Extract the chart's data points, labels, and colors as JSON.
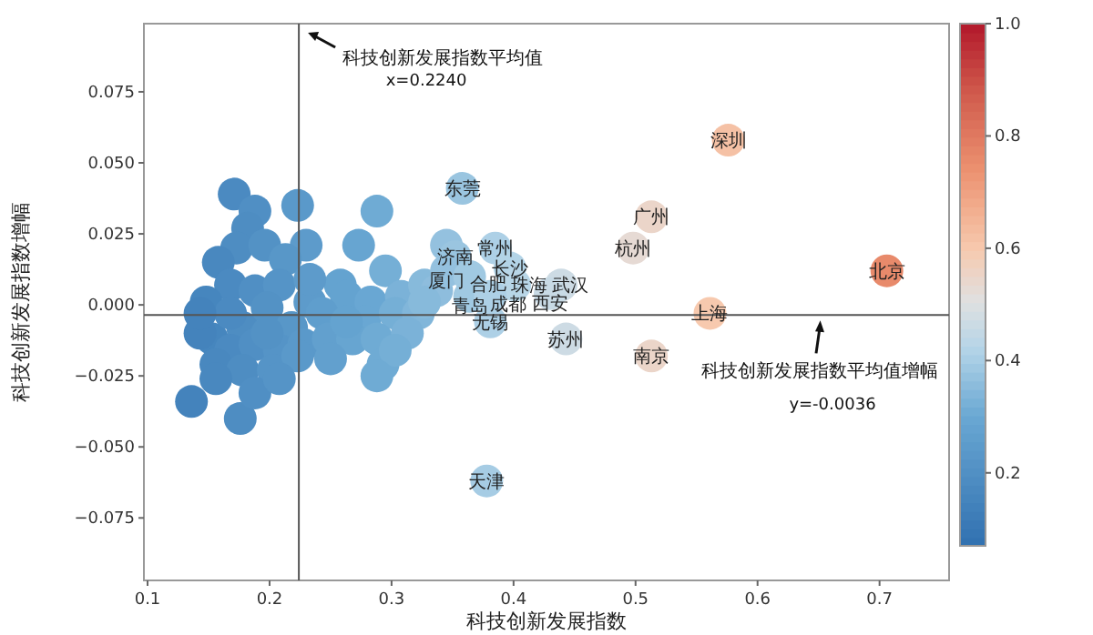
{
  "chart_data": {
    "type": "scatter",
    "marker": "circle",
    "xlabel": "科技创新发展指数",
    "ylabel": "科技创新发展指数增幅",
    "xlim": [
      0.097,
      0.757
    ],
    "ylim": [
      -0.097,
      0.099
    ],
    "xticks": [
      0.1,
      0.2,
      0.3,
      0.4,
      0.5,
      0.6,
      0.7
    ],
    "yticks": [
      {
        "value": -0.075,
        "label": "−0.075"
      },
      {
        "value": -0.05,
        "label": "−0.050"
      },
      {
        "value": -0.025,
        "label": "−0.025"
      },
      {
        "value": 0,
        "label": "0.000"
      },
      {
        "value": 0.025,
        "label": "0.025"
      },
      {
        "value": 0.05,
        "label": "0.050"
      },
      {
        "value": 0.075,
        "label": "0.075"
      }
    ],
    "clim": [
      0.07,
      1.0
    ],
    "cticks": [
      0.2,
      0.4,
      0.6,
      0.8,
      {
        "value": 1.0,
        "label": "1.0"
      }
    ],
    "grid": false,
    "x": [
      0.171,
      0.188,
      0.182,
      0.223,
      0.288,
      0.173,
      0.196,
      0.23,
      0.273,
      0.345,
      0.295,
      0.158,
      0.213,
      0.258,
      0.168,
      0.188,
      0.208,
      0.233,
      0.263,
      0.283,
      0.308,
      0.327,
      0.337,
      0.153,
      0.178,
      0.198,
      0.218,
      0.243,
      0.278,
      0.303,
      0.322,
      0.148,
      0.143,
      0.168,
      0.188,
      0.208,
      0.228,
      0.248,
      0.268,
      0.288,
      0.313,
      0.156,
      0.178,
      0.203,
      0.223,
      0.25,
      0.293,
      0.303,
      0.136,
      0.176,
      0.188,
      0.156,
      0.208,
      0.288,
      0.168,
      0.198,
      0.233,
      0.263,
      0.327,
      0.143,
      0.358,
      0.352,
      0.385,
      0.345,
      0.364,
      0.397,
      0.401,
      0.364,
      0.381,
      0.439,
      0.43,
      0.381,
      0.443,
      0.378,
      0.513,
      0.498,
      0.513,
      0.561,
      0.576,
      0.706
    ],
    "values": [
      0.039,
      0.033,
      0.027,
      0.035,
      0.033,
      0.02,
      0.021,
      0.021,
      0.021,
      0.021,
      0.012,
      0.015,
      0.016,
      0.007,
      0.007,
      0.005,
      0.007,
      0.001,
      0.003,
      0.001,
      0.003,
      0.007,
      0.005,
      -0.012,
      -0.008,
      -0.001,
      -0.008,
      -0.003,
      -0.006,
      -0.003,
      -0.003,
      0.001,
      -0.01,
      -0.016,
      -0.014,
      -0.016,
      -0.014,
      -0.012,
      -0.012,
      -0.012,
      -0.01,
      -0.021,
      -0.023,
      -0.023,
      -0.018,
      -0.019,
      -0.021,
      -0.016,
      -0.034,
      -0.04,
      -0.031,
      -0.026,
      -0.026,
      -0.025,
      -0.003,
      -0.01,
      0.009,
      -0.006,
      0.001,
      -0.003,
      0.041,
      0.017,
      0.02,
      0.012,
      0.01,
      0.013,
      0.007,
      0.003,
      0.003,
      0.007,
      0.004,
      -0.006,
      -0.012,
      -0.062,
      0.031,
      0.02,
      -0.018,
      -0.003,
      0.058,
      0.012
    ],
    "cvalues": [
      0.18,
      0.2,
      0.19,
      0.24,
      0.31,
      0.19,
      0.21,
      0.25,
      0.29,
      0.37,
      0.32,
      0.17,
      0.23,
      0.28,
      0.18,
      0.2,
      0.22,
      0.25,
      0.28,
      0.3,
      0.33,
      0.35,
      0.36,
      0.16,
      0.19,
      0.21,
      0.23,
      0.26,
      0.3,
      0.32,
      0.34,
      0.16,
      0.15,
      0.18,
      0.2,
      0.22,
      0.24,
      0.27,
      0.29,
      0.31,
      0.33,
      0.17,
      0.19,
      0.22,
      0.24,
      0.27,
      0.31,
      0.32,
      0.15,
      0.19,
      0.2,
      0.17,
      0.22,
      0.31,
      0.18,
      0.21,
      0.25,
      0.28,
      0.35,
      0.15,
      0.38,
      0.38,
      0.41,
      0.37,
      0.39,
      0.42,
      0.43,
      0.39,
      0.41,
      0.47,
      0.46,
      0.41,
      0.47,
      0.4,
      0.55,
      0.53,
      0.55,
      0.6,
      0.62,
      0.76
    ],
    "ref_lines": [
      {
        "axis": "x",
        "value": 0.224,
        "label": "科技创新发展指数平均值",
        "color": "#555555"
      },
      {
        "axis": "y",
        "value": -0.0036,
        "label": "科技创新发展指数平均值增幅",
        "color": "#555555"
      }
    ],
    "annotations": [
      "x=0.2240",
      "y=-0.0036",
      {
        "text": "东莞",
        "x": 0.358,
        "y": 0.041
      },
      {
        "text": "济南",
        "x": 0.352,
        "y": 0.017
      },
      {
        "text": "常州",
        "x": 0.385,
        "y": 0.02
      },
      {
        "text": "厦门",
        "x": 0.345,
        "y": 0.012
      },
      {
        "text": "合肥",
        "x": 0.364,
        "y": 0.01
      },
      {
        "text": "长沙",
        "x": 0.397,
        "y": 0.013
      },
      {
        "text": "珠海",
        "x": 0.401,
        "y": 0.007
      },
      {
        "text": "青岛",
        "x": 0.364,
        "y": 0.003
      },
      {
        "text": "成都",
        "x": 0.381,
        "y": 0.003
      },
      {
        "text": "武汉",
        "x": 0.439,
        "y": 0.007
      },
      {
        "text": "西安",
        "x": 0.43,
        "y": 0.004
      },
      {
        "text": "无锡",
        "x": 0.381,
        "y": -0.006
      },
      {
        "text": "苏州",
        "x": 0.443,
        "y": -0.012
      },
      {
        "text": "天津",
        "x": 0.378,
        "y": -0.062
      },
      {
        "text": "广州",
        "x": 0.513,
        "y": 0.031
      },
      {
        "text": "杭州",
        "x": 0.498,
        "y": 0.02
      },
      {
        "text": "南京",
        "x": 0.513,
        "y": -0.018
      },
      {
        "text": "上海",
        "x": 0.561,
        "y": -0.003
      },
      {
        "text": "深圳",
        "x": 0.576,
        "y": 0.058
      },
      {
        "text": "北京",
        "x": 0.706,
        "y": 0.012
      }
    ]
  }
}
